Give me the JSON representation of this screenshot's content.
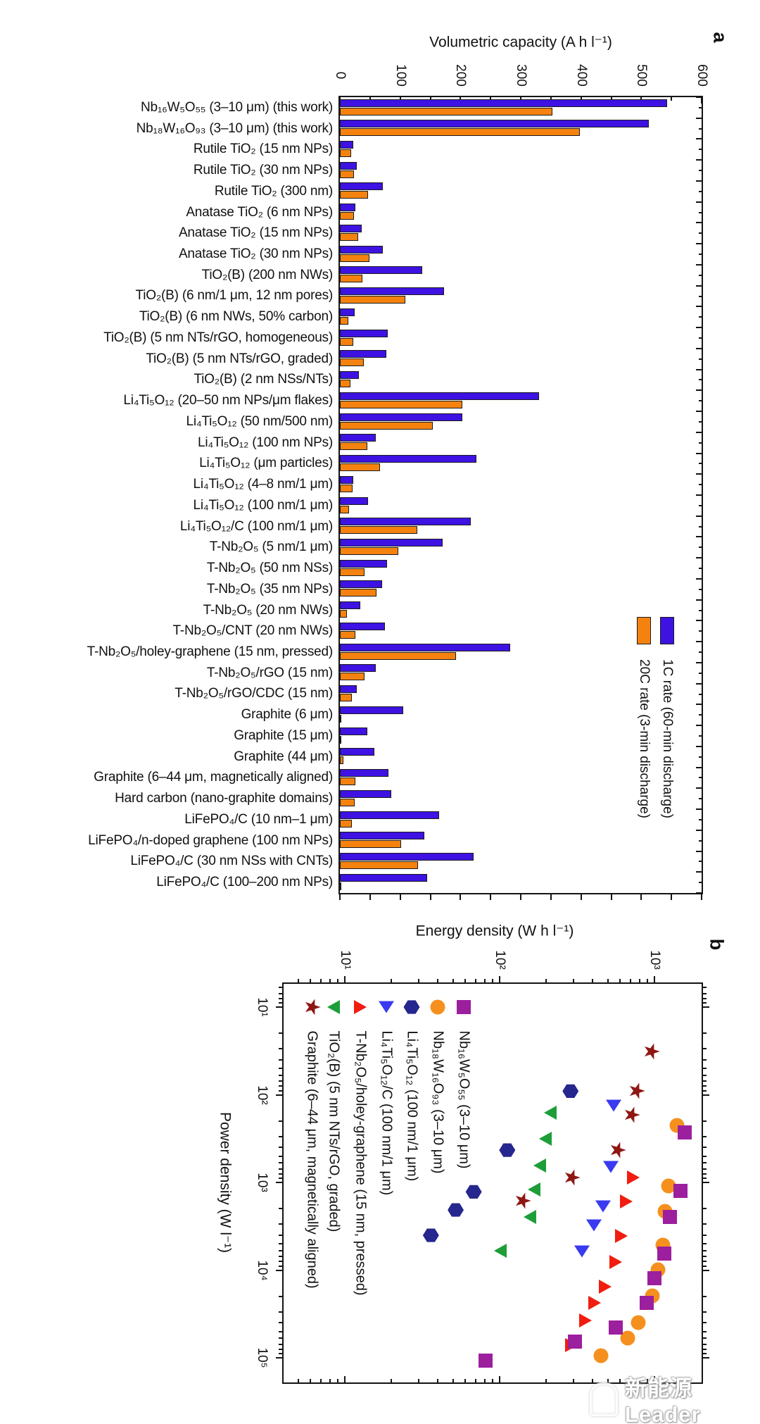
{
  "figure": {
    "source_note": "figure rotated 90 degrees clockwise",
    "panel_a": {
      "letter": "a",
      "axis_title": "Volumetric capacity (A h l⁻¹)",
      "capacity_tick_labels": [
        "0",
        "100",
        "200",
        "300",
        "400",
        "500",
        "600"
      ]
    },
    "panel_b": {
      "letter": "b",
      "energy_axis_title": "Energy density (W h l⁻¹)",
      "power_axis_title": "Power density (W l⁻¹)",
      "energy_tick_labels": [
        "10¹",
        "10²",
        "10³"
      ],
      "power_tick_labels": [
        "10¹",
        "10²",
        "10³",
        "10⁴",
        "10⁵"
      ]
    },
    "watermark": {
      "text": "新能源Leader"
    }
  },
  "chart_data": [
    {
      "type": "bar",
      "orientation": "horizontal-bars-in-rotated-view",
      "title": "Volumetric capacity (A h l⁻¹)",
      "xlabel": "Volumetric capacity (A h l⁻¹)",
      "xlim": [
        0,
        600
      ],
      "grid": false,
      "categories": [
        "Nb₁₆W₅O₅₅ (3–10 μm) (this work)",
        "Nb₁₈W₁₆O₉₃ (3–10 μm) (this work)",
        "Rutile TiO₂ (15 nm NPs)",
        "Rutile TiO₂ (30 nm NPs)",
        "Rutile TiO₂ (300 nm)",
        "Anatase TiO₂ (6 nm NPs)",
        "Anatase TiO₂ (15 nm NPs)",
        "Anatase TiO₂ (30 nm NPs)",
        "TiO₂(B) (200 nm NWs)",
        "TiO₂(B) (6 nm/1 μm, 12 nm pores)",
        "TiO₂(B) (6 nm NWs, 50% carbon)",
        "TiO₂(B) (5 nm NTs/rGO, homogeneous)",
        "TiO₂(B) (5 nm NTs/rGO, graded)",
        "TiO₂(B) (2 nm NSs/NTs)",
        "Li₄Ti₅O₁₂ (20–50 nm NPs/μm flakes)",
        "Li₄Ti₅O₁₂ (50 nm/500 nm)",
        "Li₄Ti₅O₁₂ (100 nm NPs)",
        "Li₄Ti₅O₁₂ (μm particles)",
        "Li₄Ti₅O₁₂ (4–8 nm/1 μm)",
        "Li₄Ti₅O₁₂ (100 nm/1 μm)",
        "Li₄Ti₅O₁₂/C (100 nm/1 μm)",
        "T-Nb₂O₅ (5 nm/1 μm)",
        "T-Nb₂O₅ (50 nm NSs)",
        "T-Nb₂O₅ (35 nm NPs)",
        "T-Nb₂O₅ (20 nm NWs)",
        "T-Nb₂O₅/CNT (20 nm NWs)",
        "T-Nb₂O₅/holey-graphene (15 nm, pressed)",
        "T-Nb₂O₅/rGO (15 nm)",
        "T-Nb₂O₅/rGO/CDC (15 nm)",
        "Graphite (6 μm)",
        "Graphite (15 μm)",
        "Graphite (44 μm)",
        "Graphite (6–44 μm, magnetically aligned)",
        "Hard carbon (nano-graphite domains)",
        "LiFePO₄/C (10 nm–1 μm)",
        "LiFePO₄/n-doped graphene (100 nm NPs)",
        "LiFePO₄/C (30 nm NSs with CNTs)",
        "LiFePO₄/C (100–200 nm NPs)"
      ],
      "series": [
        {
          "name": "1C rate (60-min discharge)",
          "color": "#3d12e3",
          "values": [
            543,
            512,
            22,
            28,
            71,
            26,
            36,
            71,
            137,
            173,
            25,
            79,
            77,
            31,
            330,
            203,
            59,
            227,
            22,
            47,
            217,
            171,
            78,
            70,
            34,
            75,
            283,
            60,
            28,
            105,
            45,
            57,
            80,
            85,
            165,
            140,
            222,
            145
          ]
        },
        {
          "name": "20C rate (3-min discharge)",
          "color": "#f5820f",
          "values": [
            353,
            398,
            19,
            23,
            47,
            23,
            30,
            49,
            37,
            108,
            14,
            22,
            40,
            18,
            203,
            154,
            46,
            67,
            21,
            15,
            128,
            97,
            41,
            61,
            12,
            26,
            193,
            41,
            20,
            2,
            2,
            6,
            26,
            25,
            20,
            102,
            129,
            2
          ]
        }
      ]
    },
    {
      "type": "scatter",
      "title": "Ragone plot (volumetric)",
      "xlabel": "Power density (W l⁻¹)",
      "ylabel": "Energy density (W h l⁻¹)",
      "x_range_log": [
        10,
        100000
      ],
      "y_range_log": [
        10,
        1000
      ],
      "log_log": true,
      "point_format": "[power_W_per_l, energy_Wh_per_l]",
      "series": [
        {
          "name": "Graphite (6–44 μm, magnetically aligned)",
          "marker": "star",
          "color": "#8e1713",
          "points": [
            [
              32,
              950
            ],
            [
              90,
              760
            ],
            [
              170,
              710
            ],
            [
              430,
              575
            ],
            [
              880,
              290
            ],
            [
              1630,
              140
            ]
          ]
        },
        {
          "name": "TiO₂(B) (5 nm NTs/rGO, graded)",
          "marker": "triangle-left",
          "color": "#1d9e38",
          "points": [
            [
              160,
              213
            ],
            [
              320,
              198
            ],
            [
              645,
              182
            ],
            [
              1210,
              167
            ],
            [
              2480,
              157
            ],
            [
              6030,
              101
            ]
          ]
        },
        {
          "name": "T-Nb₂O₅/holey-graphene (15 nm, pressed)",
          "marker": "triangle-right",
          "color": "#f01d10",
          "points": [
            [
              880,
              730
            ],
            [
              1660,
              660
            ],
            [
              4080,
              610
            ],
            [
              8120,
              560
            ],
            [
              15500,
              480
            ],
            [
              23700,
              410
            ],
            [
              37800,
              357
            ],
            [
              71700,
              290
            ]
          ]
        },
        {
          "name": "Li₄Ti₅O₁₂/C (100 nm/1 μm)",
          "marker": "triangle-down",
          "color": "#3a3af0",
          "points": [
            [
              133,
              545
            ],
            [
              660,
              525
            ],
            [
              1880,
              468
            ],
            [
              3100,
              408
            ],
            [
              6100,
              339
            ]
          ]
        },
        {
          "name": "Li₄Ti₅O₁₂ (100 nm/1 μm)",
          "marker": "hexagon",
          "color": "#26268f",
          "points": [
            [
              91,
              287
            ],
            [
              428,
              112
            ],
            [
              1280,
              68
            ],
            [
              2060,
              52
            ],
            [
              4010,
              36
            ]
          ]
        },
        {
          "name": "Nb₁₈W₁₆O₉₃ (3–10 μm)",
          "marker": "circle",
          "color": "#f5901f",
          "points": [
            [
              224,
              1400
            ],
            [
              1100,
              1230
            ],
            [
              2140,
              1170
            ],
            [
              5210,
              1130
            ],
            [
              9980,
              1050
            ],
            [
              19700,
              970
            ],
            [
              39800,
              790
            ],
            [
              59600,
              670
            ],
            [
              94600,
              450
            ]
          ]
        },
        {
          "name": "Nb₁₆W₅O₅₅ (3–10 μm)",
          "marker": "square",
          "color": "#9c1f9e",
          "points": [
            [
              270,
              1570
            ],
            [
              1250,
              1480
            ],
            [
              2470,
              1260
            ],
            [
              6480,
              1160
            ],
            [
              12400,
              1000
            ],
            [
              23700,
              890
            ],
            [
              45200,
              560
            ],
            [
              65300,
              306
            ],
            [
              108000,
              81
            ]
          ]
        }
      ]
    }
  ]
}
